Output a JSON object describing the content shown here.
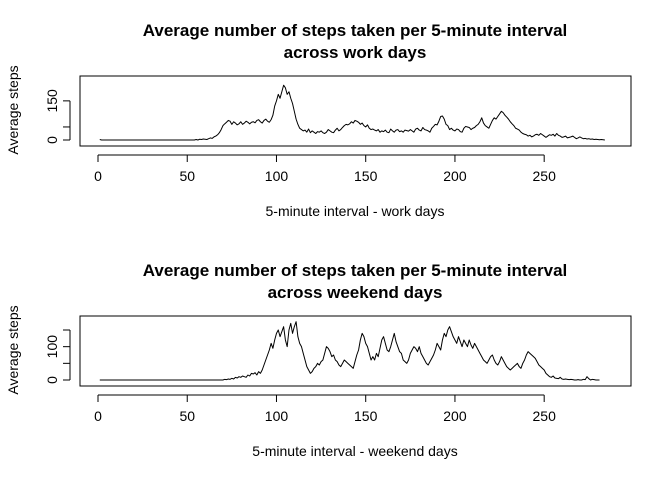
{
  "chart_data": [
    {
      "type": "line",
      "title": "Average number of steps taken per 5-minute interval",
      "title_line2": "across work days",
      "xlabel": "5-minute interval - work days",
      "ylabel": "Average steps",
      "xlim": [
        0,
        288
      ],
      "ylim": [
        0,
        230
      ],
      "xticks": [
        0,
        50,
        100,
        150,
        200,
        250
      ],
      "yticks": [
        0,
        50,
        150
      ],
      "ytick_labels": [
        "0",
        "",
        "150"
      ],
      "grid": false,
      "x_start": 1,
      "x_step": 1,
      "values": [
        2,
        0,
        0,
        0,
        0,
        0,
        0,
        0,
        0,
        0,
        0,
        0,
        0,
        0,
        0,
        0,
        0,
        0,
        0,
        0,
        0,
        0,
        0,
        0,
        0,
        0,
        0,
        0,
        0,
        0,
        0,
        0,
        0,
        0,
        0,
        0,
        0,
        0,
        0,
        0,
        0,
        0,
        0,
        0,
        0,
        0,
        0,
        0,
        0,
        0,
        0,
        0,
        0,
        0,
        2,
        0,
        3,
        2,
        4,
        3,
        2,
        5,
        8,
        6,
        12,
        15,
        20,
        28,
        40,
        55,
        62,
        68,
        75,
        72,
        60,
        70,
        65,
        58,
        62,
        70,
        60,
        65,
        72,
        68,
        62,
        68,
        70,
        66,
        75,
        78,
        70,
        65,
        75,
        80,
        72,
        68,
        78,
        95,
        130,
        150,
        175,
        160,
        185,
        210,
        200,
        175,
        185,
        160,
        140,
        110,
        80,
        60,
        45,
        40,
        35,
        38,
        30,
        42,
        28,
        35,
        30,
        25,
        32,
        30,
        35,
        28,
        25,
        30,
        40,
        35,
        30,
        28,
        38,
        45,
        35,
        40,
        48,
        55,
        60,
        58,
        62,
        70,
        65,
        75,
        72,
        68,
        60,
        65,
        55,
        50,
        58,
        45,
        40,
        42,
        38,
        35,
        40,
        30,
        35,
        32,
        38,
        30,
        28,
        42,
        35,
        30,
        38,
        40,
        32,
        35,
        30,
        38,
        36,
        34,
        40,
        35,
        30,
        42,
        45,
        38,
        35,
        48,
        40,
        38,
        35,
        30,
        45,
        52,
        60,
        58,
        72,
        90,
        92,
        80,
        60,
        55,
        40,
        45,
        38,
        35,
        42,
        40,
        32,
        30,
        45,
        52,
        50,
        48,
        40,
        45,
        48,
        55,
        60,
        70,
        85,
        65,
        55,
        50,
        45,
        60,
        75,
        85,
        80,
        90,
        100,
        110,
        105,
        95,
        88,
        80,
        70,
        62,
        55,
        45,
        42,
        38,
        30,
        25,
        22,
        20,
        15,
        18,
        12,
        15,
        20,
        22,
        18,
        25,
        20,
        15,
        10,
        15,
        20,
        18,
        22,
        15,
        25,
        18,
        15,
        10,
        12,
        15,
        8,
        10,
        12,
        15,
        10,
        5,
        8,
        12,
        8,
        5,
        6,
        4,
        5,
        3,
        4,
        2,
        3,
        2,
        1,
        2,
        1,
        0
      ]
    },
    {
      "type": "line",
      "title": "Average number of steps taken per 5-minute interval",
      "title_line2": "across weekend days",
      "xlabel": "5-minute interval - weekend days",
      "ylabel": "Average steps",
      "xlim": [
        0,
        288
      ],
      "ylim": [
        0,
        180
      ],
      "xticks": [
        0,
        50,
        100,
        150,
        200,
        250
      ],
      "yticks": [
        0,
        50,
        100,
        150
      ],
      "ytick_labels": [
        "0",
        "",
        "100",
        ""
      ],
      "grid": false,
      "x_start": 1,
      "x_step": 1,
      "values": [
        0,
        0,
        0,
        0,
        0,
        0,
        0,
        0,
        0,
        0,
        0,
        0,
        0,
        0,
        0,
        0,
        0,
        0,
        0,
        0,
        0,
        0,
        0,
        0,
        0,
        0,
        0,
        0,
        0,
        0,
        0,
        0,
        0,
        0,
        0,
        0,
        0,
        0,
        0,
        0,
        0,
        0,
        0,
        0,
        0,
        0,
        0,
        0,
        0,
        0,
        0,
        0,
        0,
        0,
        0,
        0,
        0,
        0,
        0,
        0,
        0,
        0,
        0,
        0,
        0,
        0,
        0,
        0,
        0,
        0,
        2,
        1,
        3,
        2,
        5,
        3,
        8,
        6,
        10,
        8,
        12,
        10,
        8,
        15,
        12,
        20,
        18,
        22,
        15,
        25,
        20,
        30,
        45,
        60,
        75,
        90,
        110,
        95,
        120,
        140,
        150,
        130,
        145,
        160,
        120,
        100,
        150,
        170,
        140,
        160,
        175,
        130,
        110,
        100,
        80,
        60,
        40,
        30,
        20,
        25,
        35,
        40,
        50,
        45,
        55,
        60,
        80,
        100,
        95,
        85,
        70,
        75,
        60,
        55,
        45,
        40,
        50,
        60,
        55,
        50,
        45,
        40,
        35,
        55,
        75,
        90,
        120,
        140,
        130,
        110,
        100,
        80,
        60,
        70,
        60,
        80,
        70,
        95,
        120,
        130,
        110,
        90,
        85,
        100,
        120,
        140,
        115,
        100,
        85,
        80,
        60,
        55,
        50,
        60,
        80,
        90,
        100,
        95,
        85,
        100,
        80,
        70,
        60,
        50,
        45,
        55,
        65,
        75,
        90,
        110,
        100,
        90,
        120,
        140,
        130,
        150,
        160,
        145,
        130,
        120,
        110,
        130,
        115,
        100,
        120,
        110,
        100,
        120,
        105,
        95,
        110,
        100,
        90,
        80,
        70,
        60,
        55,
        50,
        60,
        70,
        75,
        60,
        50,
        45,
        55,
        70,
        60,
        50,
        40,
        35,
        30,
        35,
        40,
        45,
        50,
        40,
        35,
        50,
        60,
        75,
        85,
        80,
        75,
        70,
        65,
        55,
        45,
        40,
        35,
        30,
        20,
        15,
        10,
        8,
        12,
        6,
        5,
        4,
        8,
        3,
        2,
        3,
        2,
        1,
        2,
        1,
        0,
        0,
        1,
        0,
        0,
        2,
        1,
        10,
        4,
        0,
        2,
        1,
        0,
        0,
        0
      ]
    }
  ]
}
